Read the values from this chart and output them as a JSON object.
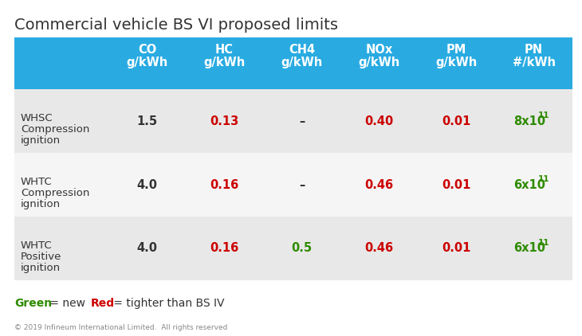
{
  "title": "Commercial vehicle BS VI proposed limits",
  "title_fontsize": 14,
  "background_color": "#ffffff",
  "header_bg_color": "#29abe2",
  "header_text_color": "#ffffff",
  "row_bg_even": "#e8e8e8",
  "row_bg_odd": "#f5f5f5",
  "footer_text": "© 2019 Infineum International Limited.  All rights reserved",
  "legend_green": "Green",
  "legend_red": "Red",
  "legend_suffix": " = new     ",
  "legend_suffix2": " = tighter than BS IV",
  "col_headers": [
    [
      "CO",
      "g/kWh"
    ],
    [
      "HC",
      "g/kWh"
    ],
    [
      "CH4",
      "g/kWh"
    ],
    [
      "NOx",
      "g/kWh"
    ],
    [
      "PM",
      "g/kWh"
    ],
    [
      "PN",
      "#/kWh"
    ]
  ],
  "row_labels": [
    [
      "WHSC",
      "Compression",
      "ignition"
    ],
    [
      "WHTC",
      "Compression",
      "ignition"
    ],
    [
      "WHTC",
      "Positive",
      "ignition"
    ]
  ],
  "rows": [
    {
      "CO": {
        "text": "1.5",
        "color": "#333333"
      },
      "HC": {
        "text": "0.13",
        "color": "#cc0000"
      },
      "CH4": {
        "text": "–",
        "color": "#333333"
      },
      "NOx": {
        "text": "0.40",
        "color": "#cc0000"
      },
      "PM": {
        "text": "0.01",
        "color": "#cc0000"
      },
      "PN": {
        "text": "8x10",
        "sup": "11",
        "color": "#2e8b00"
      }
    },
    {
      "CO": {
        "text": "4.0",
        "color": "#333333"
      },
      "HC": {
        "text": "0.16",
        "color": "#cc0000"
      },
      "CH4": {
        "text": "–",
        "color": "#333333"
      },
      "NOx": {
        "text": "0.46",
        "color": "#cc0000"
      },
      "PM": {
        "text": "0.01",
        "color": "#cc0000"
      },
      "PN": {
        "text": "6x10",
        "sup": "11",
        "color": "#2e8b00"
      }
    },
    {
      "CO": {
        "text": "4.0",
        "color": "#333333"
      },
      "HC": {
        "text": "0.16",
        "color": "#cc0000"
      },
      "CH4": {
        "text": "0.5",
        "color": "#2e8b00"
      },
      "NOx": {
        "text": "0.46",
        "color": "#cc0000"
      },
      "PM": {
        "text": "0.01",
        "color": "#cc0000"
      },
      "PN": {
        "text": "6x10",
        "sup": "11",
        "color": "#2e8b00"
      }
    }
  ],
  "col_keys": [
    "CO",
    "HC",
    "CH4",
    "NOx",
    "PM",
    "PN"
  ],
  "green_color": "#2e8b00",
  "red_color": "#cc0000"
}
